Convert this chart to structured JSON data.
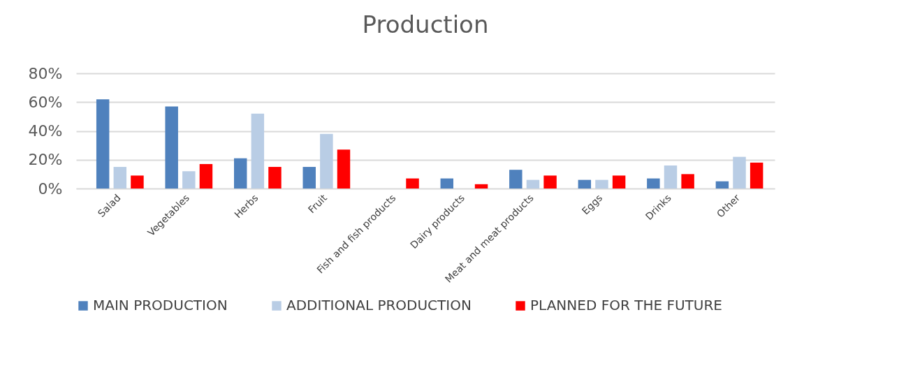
{
  "chart_data": {
    "type": "bar",
    "title": "Production",
    "categories": [
      "Salad",
      "Vegetables",
      "Herbs",
      "Fruit",
      "Fish and fish products",
      "Dairy products",
      "Meat and meat products",
      "Eggs",
      "Drinks",
      "Other"
    ],
    "series": [
      {
        "name": "MAIN PRODUCTION",
        "color": "#4f81bd",
        "values": [
          62,
          57,
          21,
          15,
          0,
          7,
          13,
          6,
          7,
          5
        ]
      },
      {
        "name": "ADDITIONAL PRODUCTION",
        "color": "#b9cde5",
        "values": [
          15,
          12,
          52,
          38,
          0,
          0,
          6,
          6,
          16,
          22
        ]
      },
      {
        "name": "PLANNED FOR THE FUTURE",
        "color": "#ff0000",
        "values": [
          9,
          17,
          15,
          27,
          7,
          3,
          9,
          9,
          10,
          18
        ]
      }
    ],
    "ylim": [
      0,
      80
    ],
    "yticks": [
      {
        "value": 0,
        "label": "0%"
      },
      {
        "value": 20,
        "label": "20%"
      },
      {
        "value": 40,
        "label": "40%"
      },
      {
        "value": 60,
        "label": "60%"
      },
      {
        "value": 80,
        "label": "80%"
      }
    ],
    "grid": "y",
    "legend": "bottom"
  }
}
